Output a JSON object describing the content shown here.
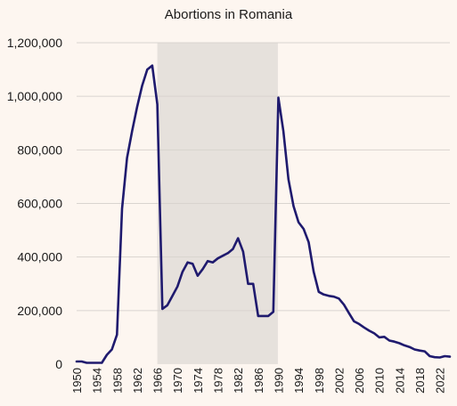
{
  "chart_data": {
    "type": "line",
    "title": "Abortions in Romania",
    "xlabel": "",
    "ylabel": "",
    "xlim": [
      1950,
      2024
    ],
    "ylim": [
      0,
      1200000
    ],
    "y_ticks": [
      0,
      200000,
      400000,
      600000,
      800000,
      1000000,
      1200000
    ],
    "y_tick_labels": [
      "0",
      "200,000",
      "400,000",
      "600,000",
      "800,000",
      "1,000,000",
      "1,200,000"
    ],
    "x_ticks": [
      1950,
      1954,
      1958,
      1962,
      1966,
      1970,
      1974,
      1978,
      1982,
      1986,
      1990,
      1994,
      1998,
      2002,
      2006,
      2010,
      2014,
      2018,
      2022
    ],
    "grid": "horizontal",
    "shaded_region": {
      "x_start": 1966,
      "x_end": 1989.9
    },
    "colors": {
      "line": "#1f1a6e",
      "shade": "#e6e1dc",
      "background": "#fdf6f0",
      "grid": "#d9d4cf"
    },
    "series": [
      {
        "x": [
          1950,
          1951,
          1952,
          1953,
          1954,
          1955,
          1956,
          1957,
          1958,
          1959,
          1960,
          1961,
          1962,
          1963,
          1964,
          1965,
          1966,
          1967,
          1968,
          1969,
          1970,
          1971,
          1972,
          1973,
          1974,
          1975,
          1976,
          1977,
          1978,
          1979,
          1980,
          1981,
          1982,
          1983,
          1984,
          1985,
          1986,
          1987,
          1988,
          1989,
          1990,
          1991,
          1992,
          1993,
          1994,
          1995,
          1996,
          1997,
          1998,
          1999,
          2000,
          2001,
          2002,
          2003,
          2004,
          2005,
          2006,
          2007,
          2008,
          2009,
          2010,
          2011,
          2012,
          2013,
          2014,
          2015,
          2016,
          2017,
          2018,
          2019,
          2020,
          2021,
          2022,
          2023,
          2024
        ],
        "values": [
          10000,
          10000,
          5000,
          5000,
          5000,
          5000,
          35000,
          55000,
          110000,
          580000,
          770000,
          870000,
          960000,
          1040000,
          1100000,
          1115000,
          970000,
          206000,
          220000,
          255000,
          290000,
          345000,
          380000,
          375000,
          330000,
          355000,
          385000,
          380000,
          395000,
          405000,
          415000,
          430000,
          470000,
          420000,
          300000,
          300000,
          180000,
          180000,
          180000,
          195000,
          995000,
          870000,
          690000,
          590000,
          530000,
          505000,
          455000,
          345000,
          270000,
          260000,
          255000,
          252000,
          245000,
          222000,
          190000,
          160000,
          150000,
          137000,
          125000,
          115000,
          100000,
          102000,
          88000,
          84000,
          78000,
          70000,
          64000,
          55000,
          51000,
          48000,
          30000,
          26000,
          25000,
          30000,
          28000
        ]
      }
    ]
  }
}
